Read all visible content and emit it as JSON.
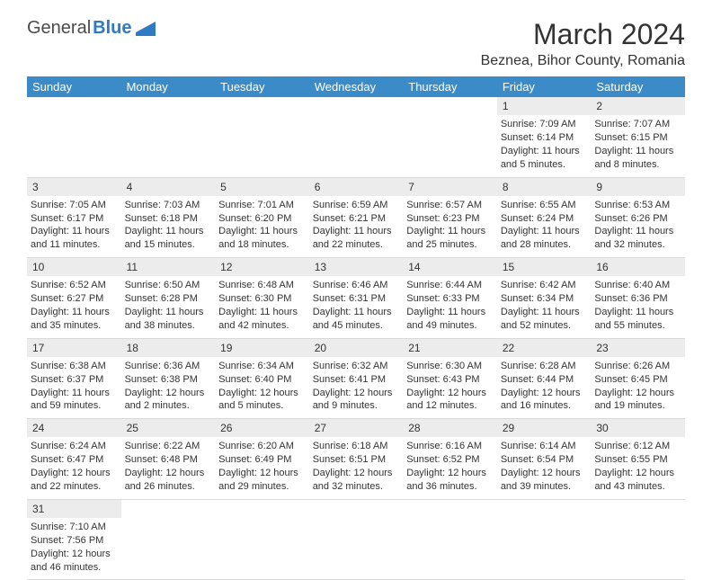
{
  "logo": {
    "text1": "General",
    "text2": "Blue"
  },
  "title": "March 2024",
  "location": "Beznea, Bihor County, Romania",
  "headers": [
    "Sunday",
    "Monday",
    "Tuesday",
    "Wednesday",
    "Thursday",
    "Friday",
    "Saturday"
  ],
  "colors": {
    "header_bg": "#3b8bc9",
    "header_fg": "#ffffff",
    "daynum_bg": "#ececec",
    "border": "#d9d9d9",
    "logo_gray": "#4a4a4a",
    "logo_blue": "#2e7bc4"
  },
  "weeks": [
    [
      null,
      null,
      null,
      null,
      null,
      {
        "n": "1",
        "sr": "Sunrise: 7:09 AM",
        "ss": "Sunset: 6:14 PM",
        "d1": "Daylight: 11 hours",
        "d2": "and 5 minutes."
      },
      {
        "n": "2",
        "sr": "Sunrise: 7:07 AM",
        "ss": "Sunset: 6:15 PM",
        "d1": "Daylight: 11 hours",
        "d2": "and 8 minutes."
      }
    ],
    [
      {
        "n": "3",
        "sr": "Sunrise: 7:05 AM",
        "ss": "Sunset: 6:17 PM",
        "d1": "Daylight: 11 hours",
        "d2": "and 11 minutes."
      },
      {
        "n": "4",
        "sr": "Sunrise: 7:03 AM",
        "ss": "Sunset: 6:18 PM",
        "d1": "Daylight: 11 hours",
        "d2": "and 15 minutes."
      },
      {
        "n": "5",
        "sr": "Sunrise: 7:01 AM",
        "ss": "Sunset: 6:20 PM",
        "d1": "Daylight: 11 hours",
        "d2": "and 18 minutes."
      },
      {
        "n": "6",
        "sr": "Sunrise: 6:59 AM",
        "ss": "Sunset: 6:21 PM",
        "d1": "Daylight: 11 hours",
        "d2": "and 22 minutes."
      },
      {
        "n": "7",
        "sr": "Sunrise: 6:57 AM",
        "ss": "Sunset: 6:23 PM",
        "d1": "Daylight: 11 hours",
        "d2": "and 25 minutes."
      },
      {
        "n": "8",
        "sr": "Sunrise: 6:55 AM",
        "ss": "Sunset: 6:24 PM",
        "d1": "Daylight: 11 hours",
        "d2": "and 28 minutes."
      },
      {
        "n": "9",
        "sr": "Sunrise: 6:53 AM",
        "ss": "Sunset: 6:26 PM",
        "d1": "Daylight: 11 hours",
        "d2": "and 32 minutes."
      }
    ],
    [
      {
        "n": "10",
        "sr": "Sunrise: 6:52 AM",
        "ss": "Sunset: 6:27 PM",
        "d1": "Daylight: 11 hours",
        "d2": "and 35 minutes."
      },
      {
        "n": "11",
        "sr": "Sunrise: 6:50 AM",
        "ss": "Sunset: 6:28 PM",
        "d1": "Daylight: 11 hours",
        "d2": "and 38 minutes."
      },
      {
        "n": "12",
        "sr": "Sunrise: 6:48 AM",
        "ss": "Sunset: 6:30 PM",
        "d1": "Daylight: 11 hours",
        "d2": "and 42 minutes."
      },
      {
        "n": "13",
        "sr": "Sunrise: 6:46 AM",
        "ss": "Sunset: 6:31 PM",
        "d1": "Daylight: 11 hours",
        "d2": "and 45 minutes."
      },
      {
        "n": "14",
        "sr": "Sunrise: 6:44 AM",
        "ss": "Sunset: 6:33 PM",
        "d1": "Daylight: 11 hours",
        "d2": "and 49 minutes."
      },
      {
        "n": "15",
        "sr": "Sunrise: 6:42 AM",
        "ss": "Sunset: 6:34 PM",
        "d1": "Daylight: 11 hours",
        "d2": "and 52 minutes."
      },
      {
        "n": "16",
        "sr": "Sunrise: 6:40 AM",
        "ss": "Sunset: 6:36 PM",
        "d1": "Daylight: 11 hours",
        "d2": "and 55 minutes."
      }
    ],
    [
      {
        "n": "17",
        "sr": "Sunrise: 6:38 AM",
        "ss": "Sunset: 6:37 PM",
        "d1": "Daylight: 11 hours",
        "d2": "and 59 minutes."
      },
      {
        "n": "18",
        "sr": "Sunrise: 6:36 AM",
        "ss": "Sunset: 6:38 PM",
        "d1": "Daylight: 12 hours",
        "d2": "and 2 minutes."
      },
      {
        "n": "19",
        "sr": "Sunrise: 6:34 AM",
        "ss": "Sunset: 6:40 PM",
        "d1": "Daylight: 12 hours",
        "d2": "and 5 minutes."
      },
      {
        "n": "20",
        "sr": "Sunrise: 6:32 AM",
        "ss": "Sunset: 6:41 PM",
        "d1": "Daylight: 12 hours",
        "d2": "and 9 minutes."
      },
      {
        "n": "21",
        "sr": "Sunrise: 6:30 AM",
        "ss": "Sunset: 6:43 PM",
        "d1": "Daylight: 12 hours",
        "d2": "and 12 minutes."
      },
      {
        "n": "22",
        "sr": "Sunrise: 6:28 AM",
        "ss": "Sunset: 6:44 PM",
        "d1": "Daylight: 12 hours",
        "d2": "and 16 minutes."
      },
      {
        "n": "23",
        "sr": "Sunrise: 6:26 AM",
        "ss": "Sunset: 6:45 PM",
        "d1": "Daylight: 12 hours",
        "d2": "and 19 minutes."
      }
    ],
    [
      {
        "n": "24",
        "sr": "Sunrise: 6:24 AM",
        "ss": "Sunset: 6:47 PM",
        "d1": "Daylight: 12 hours",
        "d2": "and 22 minutes."
      },
      {
        "n": "25",
        "sr": "Sunrise: 6:22 AM",
        "ss": "Sunset: 6:48 PM",
        "d1": "Daylight: 12 hours",
        "d2": "and 26 minutes."
      },
      {
        "n": "26",
        "sr": "Sunrise: 6:20 AM",
        "ss": "Sunset: 6:49 PM",
        "d1": "Daylight: 12 hours",
        "d2": "and 29 minutes."
      },
      {
        "n": "27",
        "sr": "Sunrise: 6:18 AM",
        "ss": "Sunset: 6:51 PM",
        "d1": "Daylight: 12 hours",
        "d2": "and 32 minutes."
      },
      {
        "n": "28",
        "sr": "Sunrise: 6:16 AM",
        "ss": "Sunset: 6:52 PM",
        "d1": "Daylight: 12 hours",
        "d2": "and 36 minutes."
      },
      {
        "n": "29",
        "sr": "Sunrise: 6:14 AM",
        "ss": "Sunset: 6:54 PM",
        "d1": "Daylight: 12 hours",
        "d2": "and 39 minutes."
      },
      {
        "n": "30",
        "sr": "Sunrise: 6:12 AM",
        "ss": "Sunset: 6:55 PM",
        "d1": "Daylight: 12 hours",
        "d2": "and 43 minutes."
      }
    ],
    [
      {
        "n": "31",
        "sr": "Sunrise: 7:10 AM",
        "ss": "Sunset: 7:56 PM",
        "d1": "Daylight: 12 hours",
        "d2": "and 46 minutes."
      },
      null,
      null,
      null,
      null,
      null,
      null
    ]
  ]
}
